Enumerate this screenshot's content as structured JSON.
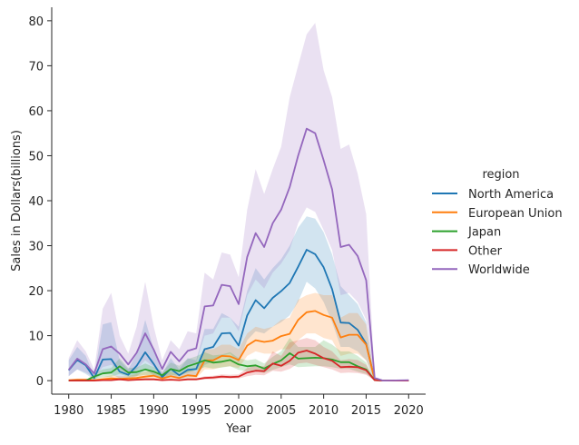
{
  "chart_data": {
    "type": "line",
    "xlabel": "Year",
    "ylabel": "Sales in Dollars(billions)",
    "legend_title": "region",
    "legend_position": "right",
    "grid": false,
    "xlim": [
      1978,
      2022
    ],
    "ylim": [
      -3,
      83
    ],
    "xticks": [
      1980,
      1985,
      1990,
      1995,
      2000,
      2005,
      2010,
      2015,
      2020
    ],
    "yticks": [
      0,
      10,
      20,
      30,
      40,
      50,
      60,
      70,
      80
    ],
    "x": [
      1980,
      1981,
      1982,
      1983,
      1984,
      1985,
      1986,
      1987,
      1988,
      1989,
      1990,
      1991,
      1992,
      1993,
      1994,
      1995,
      1996,
      1997,
      1998,
      1999,
      2000,
      2001,
      2002,
      2003,
      2004,
      2005,
      2006,
      2007,
      2008,
      2009,
      2010,
      2011,
      2012,
      2013,
      2014,
      2015,
      2016,
      2017,
      2020
    ],
    "series": [
      {
        "name": "North America",
        "color": "#1f77b4",
        "values": [
          2.3,
          4.6,
          3.4,
          0.6,
          4.7,
          4.8,
          2.0,
          1.3,
          3.3,
          6.3,
          3.7,
          0.8,
          2.6,
          1.2,
          2.4,
          2.6,
          7.0,
          7.5,
          10.5,
          10.6,
          7.8,
          14.5,
          17.9,
          16.1,
          18.4,
          19.9,
          21.7,
          25.3,
          29.1,
          28.1,
          25.2,
          20.3,
          12.9,
          12.8,
          11.3,
          8.2,
          0.2,
          0.0,
          0.0
        ],
        "lower": [
          1.0,
          2.5,
          1.5,
          0.2,
          1.5,
          1.5,
          0.5,
          0.5,
          1.0,
          2.5,
          1.2,
          0.3,
          1.0,
          0.4,
          0.8,
          1.0,
          3.5,
          4.2,
          5.5,
          6.0,
          4.0,
          9.0,
          11.0,
          10.5,
          12.0,
          13.0,
          14.5,
          17.5,
          22.0,
          20.5,
          17.5,
          13.0,
          7.5,
          7.5,
          6.5,
          4.5,
          0.0,
          0.0,
          0.0
        ],
        "upper": [
          4.5,
          7.5,
          5.5,
          1.0,
          12.5,
          13.0,
          4.5,
          2.5,
          6.0,
          13.5,
          7.0,
          1.5,
          5.0,
          2.5,
          5.0,
          4.5,
          11.5,
          11.5,
          15.0,
          14.0,
          12.0,
          20.0,
          25.0,
          22.5,
          25.0,
          27.0,
          30.0,
          34.0,
          36.5,
          36.0,
          33.0,
          28.0,
          21.0,
          19.0,
          17.0,
          13.0,
          0.5,
          0.0,
          0.0
        ]
      },
      {
        "name": "European Union",
        "color": "#ff7f0e",
        "values": [
          0.1,
          0.2,
          0.2,
          0.1,
          0.3,
          0.5,
          0.4,
          0.5,
          0.6,
          0.9,
          1.1,
          0.5,
          1.0,
          0.6,
          1.2,
          1.0,
          4.5,
          4.5,
          5.5,
          5.4,
          4.6,
          7.8,
          9.0,
          8.6,
          8.9,
          9.9,
          10.4,
          13.5,
          15.2,
          15.5,
          14.6,
          14.0,
          9.6,
          10.2,
          10.2,
          8.0,
          0.2,
          0.0,
          0.0
        ],
        "lower": [
          0.0,
          0.0,
          0.0,
          0.0,
          0.1,
          0.1,
          0.1,
          0.1,
          0.2,
          0.3,
          0.4,
          0.2,
          0.4,
          0.2,
          0.5,
          0.5,
          2.5,
          2.5,
          3.0,
          3.2,
          2.8,
          5.5,
          6.5,
          6.0,
          6.0,
          7.0,
          7.0,
          9.0,
          10.5,
          10.5,
          9.5,
          9.0,
          5.5,
          6.0,
          6.0,
          4.5,
          0.0,
          0.0,
          0.0
        ],
        "upper": [
          0.3,
          0.5,
          0.5,
          0.2,
          0.8,
          1.2,
          1.0,
          1.0,
          1.5,
          2.0,
          2.2,
          1.0,
          2.0,
          1.2,
          2.5,
          2.0,
          7.0,
          7.0,
          8.0,
          8.0,
          7.0,
          10.5,
          12.0,
          11.5,
          12.0,
          13.5,
          14.0,
          18.0,
          19.0,
          19.5,
          19.0,
          19.0,
          14.0,
          15.0,
          15.0,
          12.5,
          0.5,
          0.0,
          0.0
        ]
      },
      {
        "name": "Japan",
        "color": "#2ca02c",
        "values": [
          0.0,
          0.0,
          0.0,
          0.9,
          1.6,
          1.8,
          3.2,
          1.8,
          1.9,
          2.5,
          2.0,
          1.2,
          2.6,
          2.1,
          3.2,
          3.8,
          4.5,
          4.0,
          4.2,
          4.6,
          3.6,
          3.2,
          3.4,
          2.7,
          3.7,
          4.5,
          6.1,
          4.9,
          5.0,
          5.1,
          5.0,
          4.7,
          4.1,
          4.1,
          3.2,
          2.5,
          0.1,
          0.0,
          0.0
        ],
        "lower": [
          0.0,
          0.0,
          0.0,
          0.3,
          0.8,
          0.9,
          1.5,
          0.9,
          1.0,
          1.3,
          1.0,
          0.6,
          1.3,
          1.1,
          1.8,
          2.3,
          3.0,
          2.7,
          2.9,
          3.2,
          2.4,
          2.1,
          2.2,
          1.7,
          2.4,
          3.0,
          3.6,
          3.0,
          3.1,
          3.2,
          3.2,
          3.0,
          2.6,
          2.6,
          2.0,
          1.5,
          0.0,
          0.0,
          0.0
        ],
        "upper": [
          0.0,
          0.0,
          0.0,
          1.6,
          2.5,
          2.8,
          5.0,
          2.8,
          2.9,
          3.8,
          3.0,
          1.9,
          4.0,
          3.3,
          4.8,
          5.4,
          6.3,
          5.6,
          5.8,
          6.3,
          5.0,
          4.5,
          4.8,
          3.8,
          5.3,
          6.5,
          9.5,
          7.5,
          7.5,
          7.5,
          9.0,
          8.0,
          6.5,
          6.5,
          5.5,
          4.0,
          0.2,
          0.0,
          0.0
        ]
      },
      {
        "name": "Other",
        "color": "#d62728",
        "values": [
          0.0,
          0.0,
          0.0,
          0.0,
          0.1,
          0.1,
          0.3,
          0.1,
          0.2,
          0.3,
          0.3,
          0.1,
          0.2,
          0.1,
          0.3,
          0.3,
          0.6,
          0.7,
          0.9,
          0.8,
          0.9,
          1.8,
          2.2,
          2.1,
          3.8,
          3.3,
          4.4,
          6.2,
          6.7,
          6.0,
          5.0,
          4.4,
          3.0,
          3.1,
          3.0,
          2.3,
          0.1,
          0.0,
          0.0
        ],
        "lower": [
          0.0,
          0.0,
          0.0,
          0.0,
          0.0,
          0.0,
          0.1,
          0.0,
          0.1,
          0.1,
          0.1,
          0.0,
          0.1,
          0.0,
          0.1,
          0.1,
          0.3,
          0.3,
          0.5,
          0.5,
          0.5,
          1.0,
          1.3,
          1.2,
          2.2,
          2.0,
          2.6,
          3.8,
          4.0,
          3.5,
          3.0,
          2.5,
          1.7,
          1.8,
          1.7,
          1.3,
          0.0,
          0.0,
          0.0
        ],
        "upper": [
          0.0,
          0.0,
          0.0,
          0.0,
          0.2,
          0.2,
          0.5,
          0.2,
          0.4,
          0.5,
          0.5,
          0.2,
          0.4,
          0.2,
          0.5,
          0.5,
          1.0,
          1.1,
          1.4,
          1.3,
          1.4,
          2.8,
          3.3,
          3.2,
          6.5,
          5.5,
          8.5,
          9.0,
          9.5,
          9.0,
          7.5,
          6.5,
          4.5,
          4.8,
          4.6,
          3.5,
          0.2,
          0.0,
          0.0
        ]
      },
      {
        "name": "Worldwide",
        "color": "#9467bd",
        "values": [
          2.4,
          4.9,
          3.6,
          1.6,
          7.0,
          7.6,
          6.0,
          3.6,
          6.2,
          10.5,
          6.9,
          2.6,
          6.4,
          4.3,
          6.6,
          7.2,
          16.5,
          16.7,
          21.3,
          21.0,
          17.0,
          27.5,
          32.8,
          29.7,
          35.0,
          38.0,
          43.0,
          50.0,
          56.0,
          55.0,
          49.0,
          42.5,
          29.7,
          30.2,
          27.7,
          22.3,
          0.6,
          0.0,
          0.1
        ],
        "lower": [
          1.0,
          2.5,
          1.8,
          0.7,
          3.0,
          3.5,
          2.5,
          1.5,
          2.5,
          4.5,
          3.0,
          1.0,
          3.0,
          2.0,
          3.5,
          4.0,
          10.0,
          10.5,
          14.0,
          14.0,
          11.0,
          19.0,
          22.5,
          20.5,
          24.0,
          26.0,
          29.0,
          35.0,
          38.5,
          37.5,
          33.5,
          29.0,
          19.0,
          19.5,
          17.5,
          13.5,
          0.2,
          0.0,
          0.0
        ],
        "upper": [
          5.0,
          9.0,
          6.5,
          2.5,
          16.0,
          19.5,
          10.0,
          6.0,
          12.0,
          22.0,
          12.0,
          4.5,
          9.0,
          7.0,
          11.0,
          10.5,
          24.0,
          22.5,
          28.5,
          28.0,
          23.0,
          38.0,
          47.0,
          41.5,
          47.0,
          52.0,
          63.0,
          70.0,
          77.0,
          79.5,
          69.0,
          63.0,
          51.5,
          52.5,
          46.0,
          37.0,
          1.0,
          0.0,
          0.3
        ]
      }
    ]
  }
}
